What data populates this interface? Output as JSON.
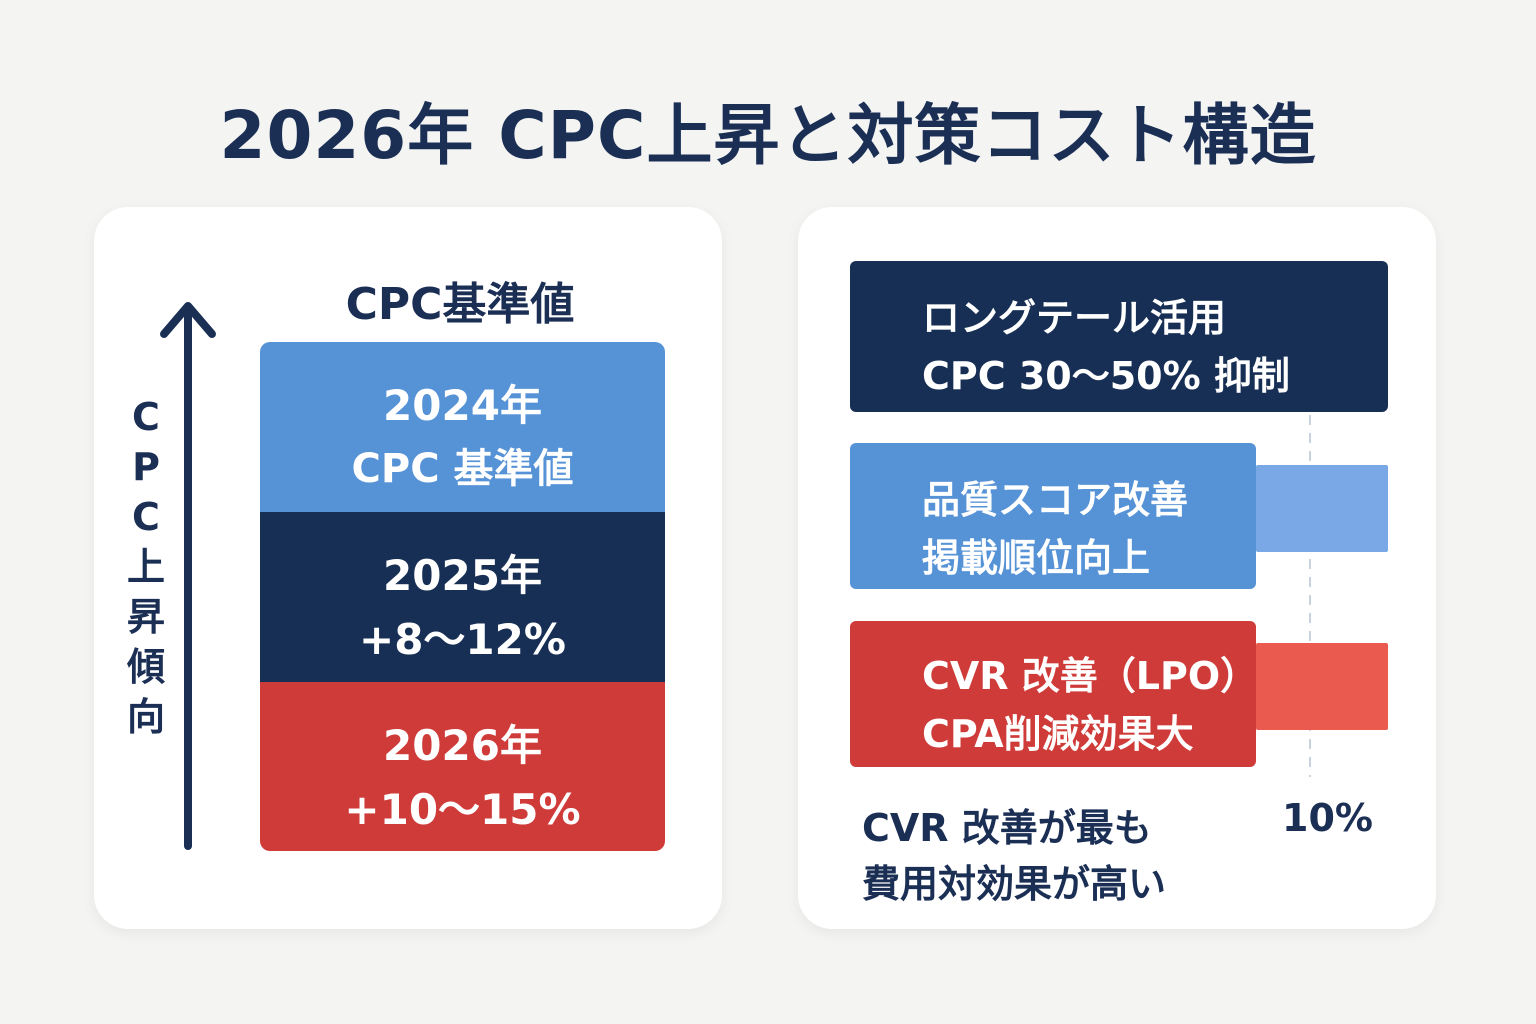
{
  "title": "2026年 CPC上昇と対策コスト構造",
  "left": {
    "heading": "CPC基準値",
    "axis_label": "CPC上昇傾向",
    "blocks": [
      {
        "line1": "2024年",
        "line2": "CPC 基準値",
        "color": "#5592d6"
      },
      {
        "line1": "2025年",
        "line2": "+8〜12%",
        "color": "#182f55"
      },
      {
        "line1": "2026年",
        "line2": "+10〜15%",
        "color": "#cf3b39"
      }
    ]
  },
  "right": {
    "measures": [
      {
        "line1": "ロングテール活用",
        "line2": "CPC 30〜50% 抑制",
        "color": "#182f55"
      },
      {
        "line1": "品質スコア改善",
        "line2": "掲載順位向上",
        "color": "#5592d6"
      },
      {
        "line1": "CVR 改善（LPO）",
        "line2": "CPA削減効果大",
        "color": "#cf3b39"
      }
    ],
    "reference_label": "10%",
    "conclusion_line1": "CVR 改善が最も",
    "conclusion_line2": "費用対効果が高い"
  },
  "colors": {
    "navy": "#182f55",
    "blue": "#5592d6",
    "red": "#cf3b39",
    "light_blue": "#7aa8e6",
    "light_red": "#ea5a4e"
  }
}
